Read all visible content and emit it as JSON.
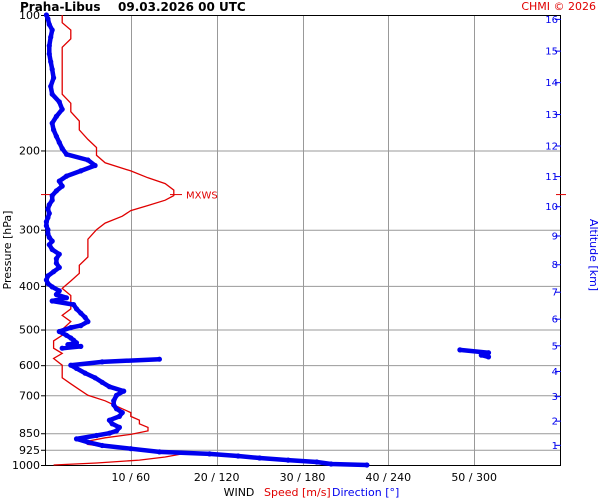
{
  "header": {
    "title": "Praha-Libus",
    "datetime": "09.03.2026 00 UTC",
    "copyright": "CHMI © 2026"
  },
  "colors": {
    "speed": "#e00000",
    "direction": "#0000ee",
    "grid": "#999999",
    "axis": "#000000",
    "mxws": "#e00000"
  },
  "chart_data": {
    "type": "line",
    "y_axis": {
      "label": "Pressure [hPa]",
      "scale": "log",
      "range": [
        1000,
        100
      ],
      "ticks": [
        100,
        200,
        300,
        400,
        500,
        600,
        700,
        850,
        925,
        1000
      ],
      "gridlines": [
        200,
        300,
        400,
        500,
        600,
        700,
        850,
        925
      ]
    },
    "x_axis": {
      "title": "WIND",
      "speed_label": "Speed [m/s]",
      "direction_label": "Direction [°]",
      "speed_range": [
        0,
        60
      ],
      "direction_range": [
        0,
        360
      ],
      "ticks": [
        "10 / 60",
        "20 / 120",
        "30 / 180",
        "40 / 240",
        "50 / 300"
      ],
      "tick_speeds": [
        10,
        20,
        30,
        40,
        50
      ]
    },
    "right_axis": {
      "label": "Altitude [km]",
      "ticks": [
        1,
        2,
        3,
        4,
        5,
        6,
        7,
        8,
        9,
        10,
        11,
        12,
        13,
        14,
        15,
        16
      ],
      "tick_pressures": [
        902,
        797,
        703,
        618,
        542,
        473,
        412,
        358,
        309,
        266,
        228,
        195,
        166,
        141,
        120,
        102
      ]
    },
    "annotation": {
      "text": "MXWS",
      "pressure": 250
    },
    "series": [
      {
        "name": "Speed [m/s]",
        "color": "#e00000",
        "points": [
          [
            1000,
            1
          ],
          [
            990,
            6
          ],
          [
            975,
            11
          ],
          [
            960,
            14
          ],
          [
            945,
            16
          ],
          [
            930,
            14
          ],
          [
            915,
            8
          ],
          [
            900,
            5
          ],
          [
            885,
            5
          ],
          [
            870,
            7
          ],
          [
            855,
            10
          ],
          [
            840,
            12
          ],
          [
            825,
            12
          ],
          [
            810,
            11
          ],
          [
            795,
            11
          ],
          [
            780,
            10
          ],
          [
            765,
            10
          ],
          [
            750,
            9
          ],
          [
            735,
            8
          ],
          [
            720,
            7
          ],
          [
            700,
            5
          ],
          [
            680,
            4
          ],
          [
            660,
            3
          ],
          [
            640,
            2
          ],
          [
            620,
            2
          ],
          [
            600,
            2
          ],
          [
            580,
            1
          ],
          [
            565,
            2
          ],
          [
            550,
            1
          ],
          [
            530,
            1
          ],
          [
            515,
            2
          ],
          [
            500,
            2
          ],
          [
            480,
            3
          ],
          [
            465,
            2
          ],
          [
            450,
            3
          ],
          [
            435,
            3
          ],
          [
            420,
            3
          ],
          [
            405,
            2
          ],
          [
            390,
            3
          ],
          [
            375,
            4
          ],
          [
            360,
            4
          ],
          [
            345,
            5
          ],
          [
            330,
            5
          ],
          [
            315,
            5
          ],
          [
            300,
            6
          ],
          [
            290,
            7
          ],
          [
            280,
            9
          ],
          [
            272,
            10
          ],
          [
            265,
            12
          ],
          [
            258,
            14
          ],
          [
            252,
            15
          ],
          [
            245,
            15
          ],
          [
            237,
            14
          ],
          [
            230,
            12
          ],
          [
            222,
            10
          ],
          [
            213,
            7
          ],
          [
            205,
            6
          ],
          [
            197,
            6
          ],
          [
            189,
            5
          ],
          [
            180,
            4
          ],
          [
            172,
            4
          ],
          [
            164,
            3
          ],
          [
            157,
            3
          ],
          [
            150,
            2
          ],
          [
            143,
            2
          ],
          [
            136,
            2
          ],
          [
            130,
            2
          ],
          [
            124,
            2
          ],
          [
            118,
            2
          ],
          [
            113,
            3
          ],
          [
            108,
            3
          ],
          [
            104,
            2
          ],
          [
            100,
            2
          ]
        ]
      },
      {
        "name": "Direction [°]",
        "color": "#0000ee",
        "points": [
          [
            1000,
            225
          ],
          [
            995,
            200
          ],
          [
            985,
            190
          ],
          [
            975,
            170
          ],
          [
            965,
            150
          ],
          [
            955,
            135
          ],
          [
            945,
            115
          ],
          [
            935,
            80
          ],
          [
            920,
            60
          ],
          [
            905,
            40
          ],
          [
            890,
            30
          ],
          [
            875,
            22
          ],
          [
            860,
            36
          ],
          [
            850,
            45
          ],
          [
            840,
            50
          ],
          [
            825,
            52
          ],
          [
            810,
            47
          ],
          [
            795,
            45
          ],
          [
            780,
            52
          ],
          [
            765,
            54
          ],
          [
            750,
            50
          ],
          [
            735,
            48
          ],
          [
            720,
            48
          ],
          [
            700,
            50
          ],
          [
            685,
            55
          ],
          [
            670,
            45
          ],
          [
            655,
            40
          ],
          [
            640,
            35
          ],
          [
            625,
            28
          ],
          [
            610,
            22
          ],
          [
            600,
            18
          ],
          [
            590,
            40
          ],
          [
            582,
            80
          ],
          [
            575,
            310
          ],
          [
            570,
            305
          ],
          [
            563,
            310
          ],
          [
            555,
            290
          ],
          [
            550,
            12
          ],
          [
            545,
            25
          ],
          [
            540,
            16
          ],
          [
            535,
            22
          ],
          [
            528,
            20
          ],
          [
            522,
            18
          ],
          [
            515,
            15
          ],
          [
            505,
            10
          ],
          [
            495,
            18
          ],
          [
            490,
            25
          ],
          [
            480,
            30
          ],
          [
            470,
            28
          ],
          [
            460,
            25
          ],
          [
            450,
            22
          ],
          [
            440,
            20
          ],
          [
            432,
            5
          ],
          [
            425,
            15
          ],
          [
            418,
            8
          ],
          [
            410,
            10
          ],
          [
            402,
            5
          ],
          [
            395,
            2
          ],
          [
            388,
            1
          ],
          [
            380,
            2
          ],
          [
            372,
            6
          ],
          [
            364,
            10
          ],
          [
            356,
            8
          ],
          [
            348,
            8
          ],
          [
            340,
            10
          ],
          [
            332,
            5
          ],
          [
            324,
            3
          ],
          [
            318,
            5
          ],
          [
            312,
            3
          ],
          [
            306,
            2
          ],
          [
            300,
            2
          ],
          [
            294,
            1
          ],
          [
            288,
            1
          ],
          [
            282,
            2
          ],
          [
            276,
            3
          ],
          [
            270,
            2
          ],
          [
            264,
            3
          ],
          [
            258,
            5
          ],
          [
            252,
            5
          ],
          [
            246,
            8
          ],
          [
            240,
            12
          ],
          [
            234,
            10
          ],
          [
            228,
            15
          ],
          [
            222,
            25
          ],
          [
            216,
            35
          ],
          [
            210,
            30
          ],
          [
            204,
            15
          ],
          [
            198,
            12
          ],
          [
            192,
            10
          ],
          [
            186,
            8
          ],
          [
            180,
            6
          ],
          [
            174,
            5
          ],
          [
            168,
            8
          ],
          [
            162,
            12
          ],
          [
            156,
            10
          ],
          [
            150,
            5
          ],
          [
            144,
            4
          ],
          [
            138,
            6
          ],
          [
            132,
            5
          ],
          [
            127,
            4
          ],
          [
            122,
            3
          ],
          [
            117,
            3
          ],
          [
            112,
            4
          ],
          [
            108,
            5
          ],
          [
            105,
            3
          ],
          [
            102,
            2
          ],
          [
            100,
            1
          ]
        ]
      }
    ]
  }
}
